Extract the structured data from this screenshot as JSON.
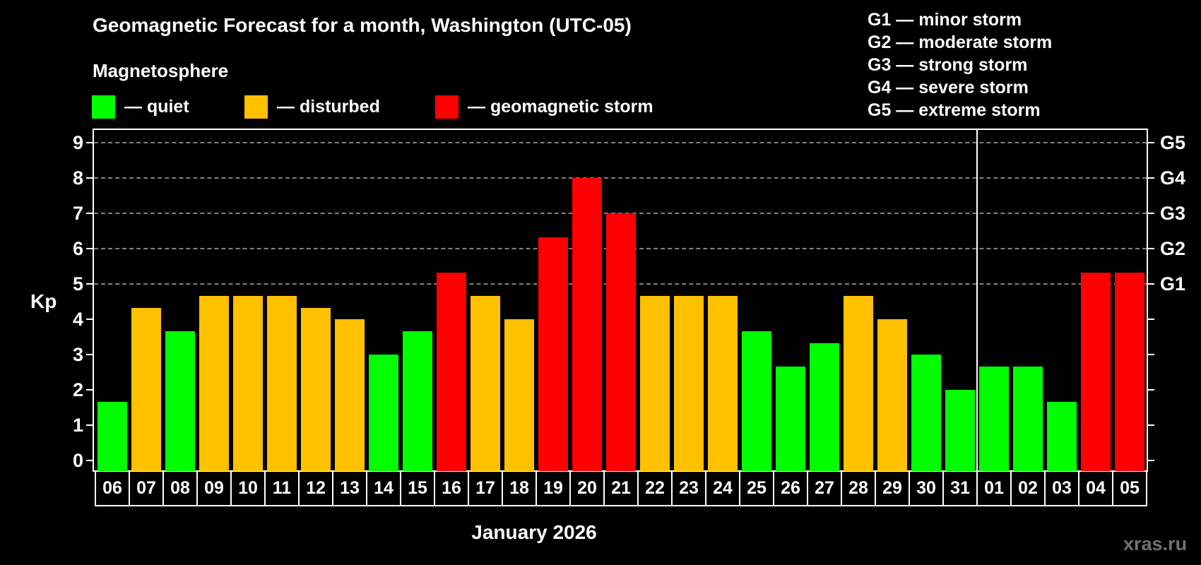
{
  "header": {
    "title": "Geomagnetic Forecast for a month, Washington (UTC-05)",
    "magnetosphere_label": "Magnetosphere"
  },
  "legend": {
    "items": [
      {
        "label": "— quiet",
        "color": "#00ff00"
      },
      {
        "label": "— disturbed",
        "color": "#ffc000"
      },
      {
        "label": "— geomagnetic storm",
        "color": "#ff0000"
      }
    ]
  },
  "storm_scale": {
    "items": [
      "G1 — minor storm",
      "G2 — moderate storm",
      "G3 — strong storm",
      "G4 — severe storm",
      "G5 — extreme storm"
    ]
  },
  "watermark": "xras.ru",
  "chart_data": {
    "type": "bar",
    "title": "Geomagnetic Forecast for a month, Washington (UTC-05)",
    "xlabel": "January 2026",
    "ylabel": "Kp",
    "ylim": [
      0,
      9
    ],
    "yticks": [
      0,
      1,
      2,
      3,
      4,
      5,
      6,
      7,
      8,
      9
    ],
    "right_axis_labels": [
      {
        "kp": 5,
        "label": "G1"
      },
      {
        "kp": 6,
        "label": "G2"
      },
      {
        "kp": 7,
        "label": "G3"
      },
      {
        "kp": 8,
        "label": "G4"
      },
      {
        "kp": 9,
        "label": "G5"
      }
    ],
    "grid": "horizontal dashed at Kp 5-9",
    "month_separator_after": "31",
    "categories": [
      "06",
      "07",
      "08",
      "09",
      "10",
      "11",
      "12",
      "13",
      "14",
      "15",
      "16",
      "17",
      "18",
      "19",
      "20",
      "21",
      "22",
      "23",
      "24",
      "25",
      "26",
      "27",
      "28",
      "29",
      "30",
      "31",
      "01",
      "02",
      "03",
      "04",
      "05"
    ],
    "values": [
      1.67,
      4.33,
      3.67,
      4.67,
      4.67,
      4.67,
      4.33,
      4.0,
      3.0,
      3.67,
      5.33,
      4.67,
      4.0,
      6.33,
      8.0,
      7.0,
      4.67,
      4.67,
      4.67,
      3.67,
      2.67,
      3.33,
      4.67,
      4.0,
      3.0,
      2.0,
      2.67,
      2.67,
      1.67,
      5.33,
      5.33
    ],
    "status": [
      "quiet",
      "disturbed",
      "quiet",
      "disturbed",
      "disturbed",
      "disturbed",
      "disturbed",
      "disturbed",
      "quiet",
      "quiet",
      "storm",
      "disturbed",
      "disturbed",
      "storm",
      "storm",
      "storm",
      "disturbed",
      "disturbed",
      "disturbed",
      "quiet",
      "quiet",
      "quiet",
      "disturbed",
      "disturbed",
      "quiet",
      "quiet",
      "quiet",
      "quiet",
      "quiet",
      "storm",
      "storm"
    ],
    "colors": {
      "quiet": "#00ff00",
      "disturbed": "#ffc000",
      "storm": "#ff0000"
    },
    "legend": [
      "quiet",
      "disturbed",
      "geomagnetic storm"
    ],
    "legend_position": "top"
  }
}
